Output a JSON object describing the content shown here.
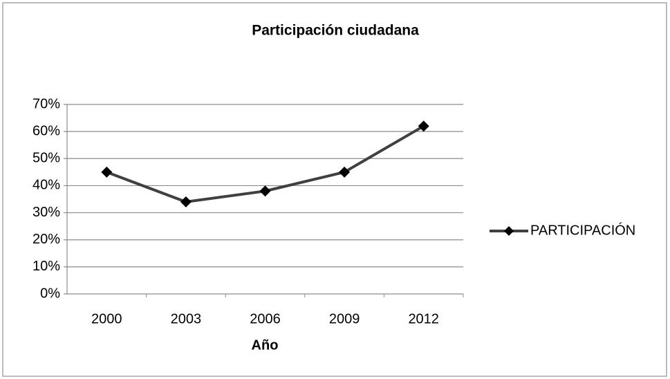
{
  "chart_data": {
    "type": "line",
    "title": "Participación ciudadana",
    "x_label": "Año",
    "categories": [
      "2000",
      "2003",
      "2006",
      "2009",
      "2012"
    ],
    "series": [
      {
        "name": "PARTICIPACIÓN",
        "color": "#404040",
        "values": [
          45,
          34,
          38,
          45,
          62
        ]
      }
    ],
    "ylim": [
      0,
      70
    ],
    "yticks": [
      {
        "value": 0,
        "label": "0%"
      },
      {
        "value": 10,
        "label": "10%"
      },
      {
        "value": 20,
        "label": "20%"
      },
      {
        "value": 30,
        "label": "30%"
      },
      {
        "value": 40,
        "label": "40%"
      },
      {
        "value": 50,
        "label": "50%"
      },
      {
        "value": 60,
        "label": "60%"
      },
      {
        "value": 70,
        "label": "70%"
      }
    ],
    "grid": true,
    "legend": "right"
  }
}
